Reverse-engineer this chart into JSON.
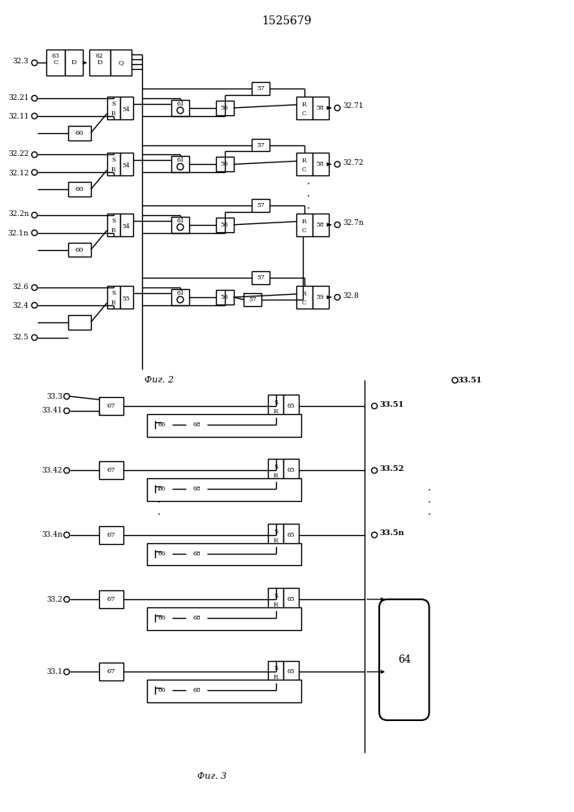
{
  "title": "1525679",
  "fig2_label": "Фиг. 2",
  "fig3_label": "Фиг. 3",
  "background_color": "#ffffff",
  "line_color": "#000000",
  "box_color": "#ffffff",
  "text_color": "#000000",
  "fig2_rows": [
    {
      "label_top": "32.21",
      "label_bot": "32.11",
      "label_out": "32.71",
      "sr_id": "54",
      "last": false
    },
    {
      "label_top": "32.22",
      "label_bot": "32.12",
      "label_out": "32.72",
      "sr_id": "54",
      "last": false
    },
    {
      "label_top": "32.2n",
      "label_bot": "32.1n",
      "label_out": "32.7n",
      "sr_id": "54",
      "last": false
    },
    {
      "label_top": "32.6",
      "label_bot": "32.4",
      "label_out": "32.8",
      "sr_id": "55",
      "last": true
    }
  ],
  "fig3_rows": [
    {
      "label_in1": "33.3",
      "label_in2": "33.41",
      "label_out": "",
      "out_right": "33.51",
      "has_out_right": true
    },
    {
      "label_in1": "33.42",
      "label_in2": "",
      "label_out": "33.52",
      "out_right": "33.52",
      "has_out_right": true
    },
    {
      "label_in1": "33.4n",
      "label_in2": "",
      "label_out": "33.5n",
      "out_right": "33.5n",
      "has_out_right": true
    },
    {
      "label_in1": "33.2",
      "label_in2": "",
      "label_out": "",
      "out_right": "",
      "has_out_right": false
    },
    {
      "label_in1": "33.1",
      "label_in2": "",
      "label_out": "",
      "out_right": "",
      "has_out_right": false
    }
  ]
}
